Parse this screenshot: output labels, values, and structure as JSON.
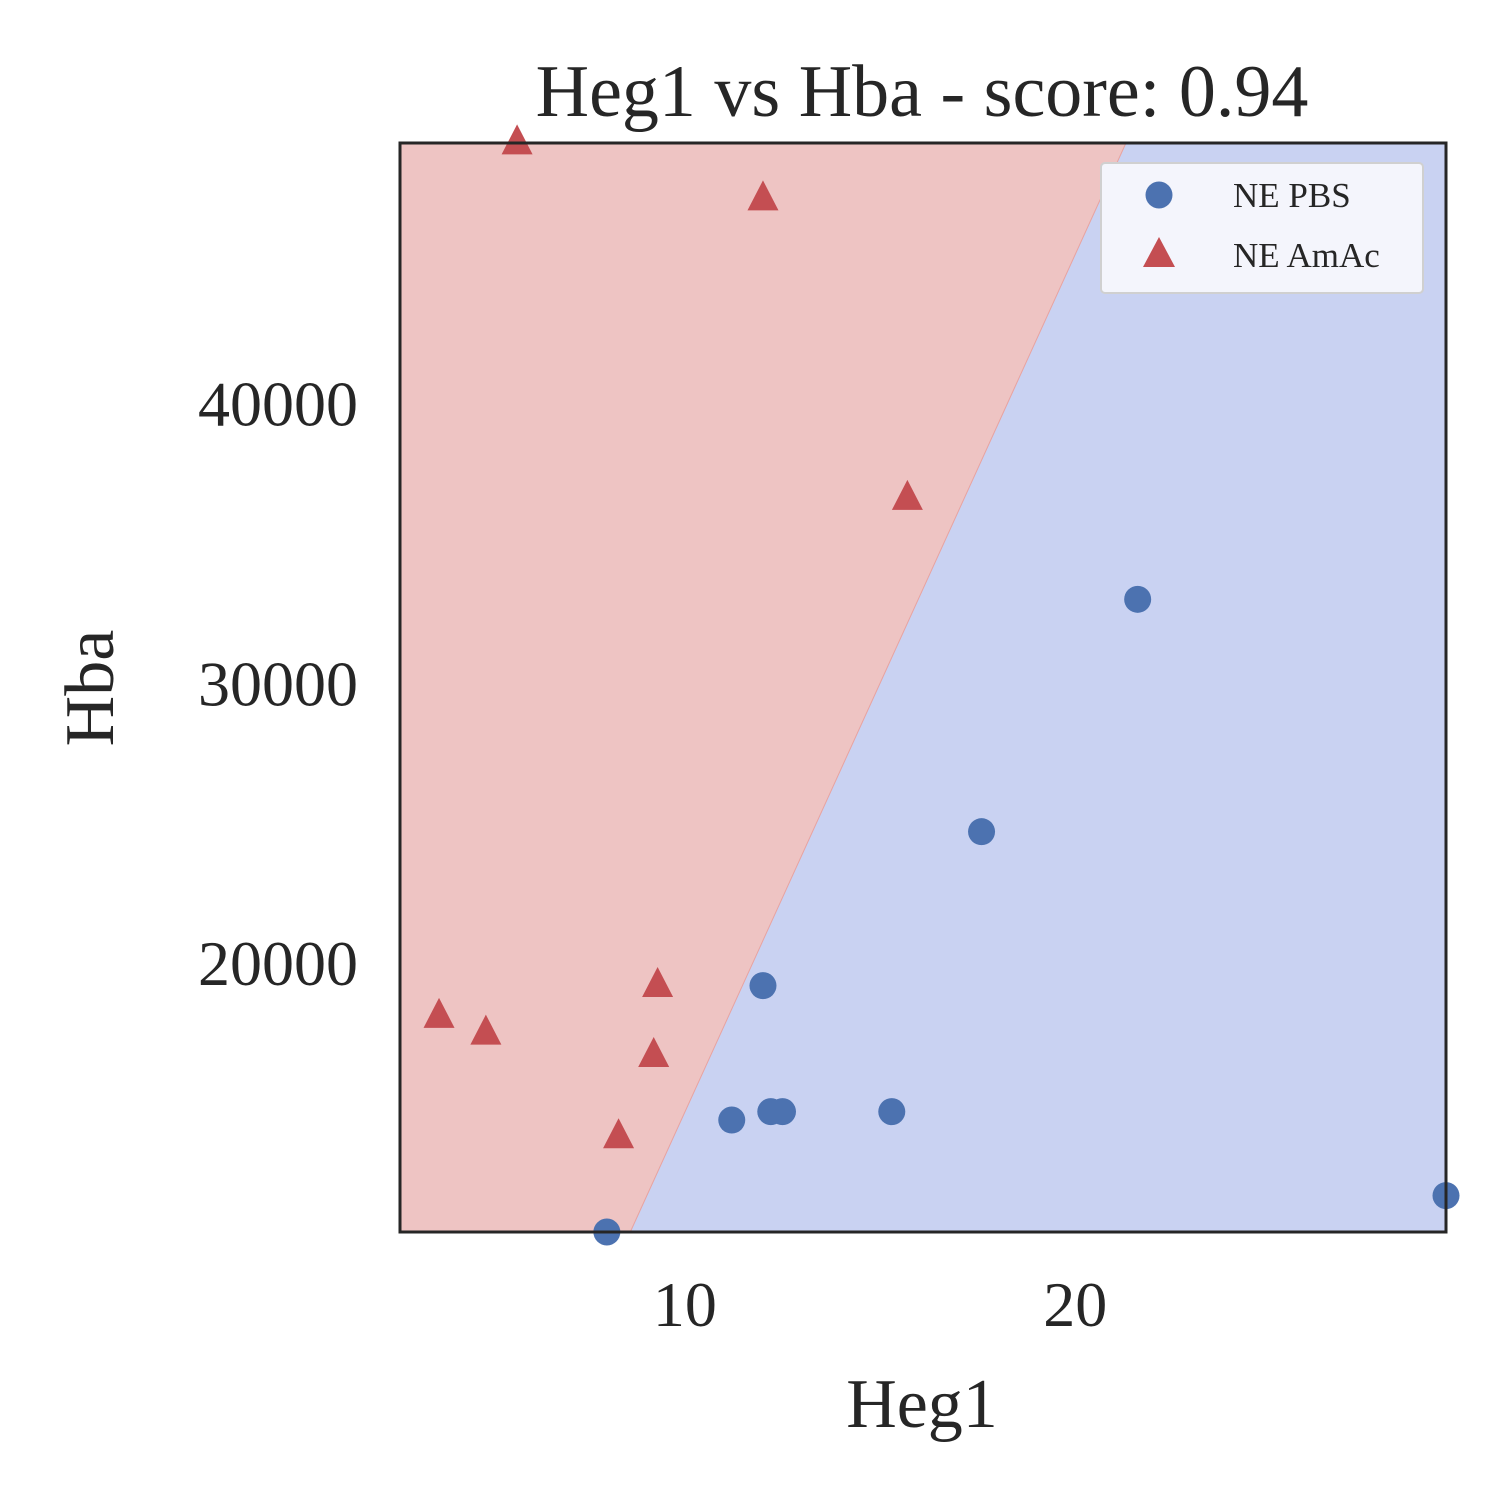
{
  "chart_data": {
    "type": "scatter",
    "title": "Heg1 vs Hba - score: 0.94",
    "xlabel": "Heg1",
    "ylabel": "Hba",
    "xlim": [
      2.7,
      29.5
    ],
    "ylim": [
      10400,
      49300
    ],
    "xticks": [
      10,
      20
    ],
    "yticks": [
      20000,
      30000,
      40000
    ],
    "grid": false,
    "legend_placement": "top-right",
    "decision_boundary": [
      [
        8.6,
        10400
      ],
      [
        21.3,
        49300
      ]
    ],
    "regions": [
      {
        "class": "NE AmAc",
        "side": "left",
        "color": "#eec4c3"
      },
      {
        "class": "NE PBS",
        "side": "right",
        "color": "#c9d2f2"
      }
    ],
    "series": [
      {
        "name": "NE PBS",
        "marker": "circle",
        "color": "#4c72b0",
        "points": [
          [
            8.0,
            10400
          ],
          [
            11.2,
            14400
          ],
          [
            12.2,
            14700
          ],
          [
            12.5,
            14700
          ],
          [
            15.3,
            14700
          ],
          [
            12.0,
            19200
          ],
          [
            17.6,
            24700
          ],
          [
            21.6,
            33000
          ],
          [
            29.5,
            11700
          ]
        ]
      },
      {
        "name": "NE AmAc",
        "marker": "triangle",
        "color": "#c44e52",
        "points": [
          [
            5.7,
            49300
          ],
          [
            12.0,
            47300
          ],
          [
            15.7,
            36600
          ],
          [
            3.7,
            18100
          ],
          [
            4.9,
            17500
          ],
          [
            9.3,
            19200
          ],
          [
            9.2,
            16700
          ],
          [
            8.3,
            13800
          ]
        ]
      }
    ]
  }
}
